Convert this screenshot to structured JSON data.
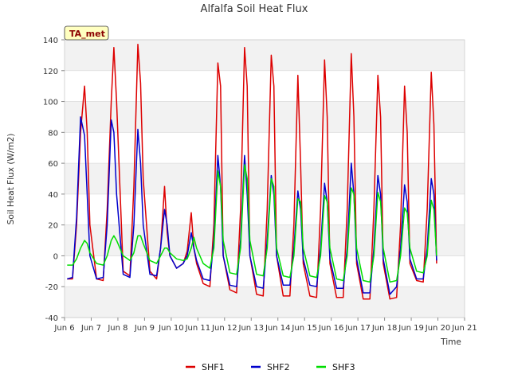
{
  "chart_data": {
    "type": "line",
    "title": "Alfalfa Soil Heat Flux",
    "xlabel": "Time",
    "ylabel": "Soil Heat Flux (W/m2)",
    "badge": "TA_met",
    "xlim": [
      6,
      21
    ],
    "ylim": [
      -40,
      140
    ],
    "x_ticks": [
      6,
      7,
      8,
      9,
      10,
      11,
      12,
      13,
      14,
      15,
      16,
      17,
      18,
      19,
      20,
      21
    ],
    "x_tick_labels": [
      "Jun 6",
      "Jun 7",
      "Jun 8",
      "Jun 9",
      "Jun 10",
      "Jun 11",
      "Jun 12",
      "Jun 13",
      "Jun 14",
      "Jun 15",
      "Jun 16",
      "Jun 17",
      "Jun 18",
      "Jun 19",
      "Jun 20",
      "Jun 21"
    ],
    "y_ticks": [
      -40,
      -20,
      0,
      20,
      40,
      60,
      80,
      100,
      120,
      140
    ],
    "grid": true,
    "legend_position": "bottom-center",
    "x": [
      6.1,
      6.3,
      6.45,
      6.6,
      6.75,
      6.85,
      6.95,
      7.2,
      7.45,
      7.6,
      7.75,
      7.85,
      7.95,
      8.2,
      8.45,
      8.6,
      8.75,
      8.85,
      8.95,
      9.2,
      9.45,
      9.6,
      9.75,
      9.85,
      9.95,
      10.2,
      10.45,
      10.6,
      10.75,
      10.85,
      10.95,
      11.2,
      11.45,
      11.6,
      11.75,
      11.85,
      11.95,
      12.2,
      12.45,
      12.6,
      12.75,
      12.85,
      12.95,
      13.2,
      13.45,
      13.6,
      13.75,
      13.85,
      13.95,
      14.2,
      14.45,
      14.6,
      14.75,
      14.85,
      14.95,
      15.2,
      15.45,
      15.6,
      15.75,
      15.85,
      15.95,
      16.2,
      16.45,
      16.6,
      16.75,
      16.85,
      16.95,
      17.2,
      17.45,
      17.6,
      17.75,
      17.85,
      17.95,
      18.2,
      18.45,
      18.6,
      18.75,
      18.85,
      18.95,
      19.2,
      19.45,
      19.6,
      19.75,
      19.85,
      19.95
    ],
    "series": [
      {
        "name": "SHF1",
        "color": "#dd0000",
        "values": [
          -15,
          -15,
          20,
          80,
          110,
          80,
          20,
          -15,
          -16,
          30,
          100,
          135,
          100,
          -10,
          -13,
          45,
          137,
          112,
          50,
          -10,
          -15,
          5,
          45,
          15,
          0,
          -8,
          -5,
          3,
          28,
          5,
          -5,
          -18,
          -20,
          20,
          125,
          110,
          0,
          -22,
          -24,
          30,
          135,
          110,
          0,
          -25,
          -26,
          30,
          130,
          110,
          0,
          -26,
          -26,
          20,
          117,
          60,
          -5,
          -26,
          -27,
          30,
          127,
          90,
          -5,
          -27,
          -27,
          30,
          131,
          90,
          -5,
          -28,
          -28,
          30,
          117,
          90,
          -5,
          -28,
          -27,
          20,
          110,
          80,
          -5,
          -16,
          -17,
          30,
          119,
          85,
          -5
        ]
      },
      {
        "name": "SHF2",
        "color": "#0000cc",
        "values": [
          -15,
          -14,
          25,
          90,
          78,
          40,
          0,
          -15,
          -14,
          20,
          88,
          80,
          40,
          -12,
          -14,
          20,
          82,
          60,
          20,
          -12,
          -13,
          5,
          30,
          20,
          0,
          -8,
          -5,
          0,
          15,
          5,
          -3,
          -15,
          -16,
          10,
          65,
          45,
          0,
          -19,
          -20,
          10,
          65,
          40,
          0,
          -20,
          -21,
          10,
          52,
          40,
          0,
          -19,
          -19,
          5,
          42,
          30,
          -2,
          -19,
          -20,
          5,
          47,
          35,
          -2,
          -21,
          -21,
          5,
          60,
          40,
          -2,
          -24,
          -24,
          5,
          52,
          40,
          -2,
          -25,
          -20,
          5,
          46,
          35,
          -2,
          -15,
          -15,
          5,
          50,
          40,
          -3
        ]
      },
      {
        "name": "SHF3",
        "color": "#00dd00",
        "values": [
          -6,
          -6,
          -2,
          5,
          10,
          8,
          2,
          -5,
          -6,
          0,
          10,
          13,
          10,
          0,
          -3,
          2,
          13,
          13,
          8,
          -3,
          -5,
          0,
          5,
          5,
          2,
          -2,
          -3,
          -2,
          5,
          12,
          5,
          -5,
          -8,
          5,
          55,
          45,
          10,
          -11,
          -12,
          5,
          59,
          50,
          10,
          -12,
          -13,
          5,
          50,
          45,
          5,
          -13,
          -14,
          0,
          37,
          35,
          5,
          -13,
          -14,
          0,
          39,
          35,
          5,
          -15,
          -16,
          0,
          44,
          40,
          5,
          -16,
          -17,
          0,
          41,
          35,
          5,
          -17,
          -16,
          0,
          31,
          28,
          5,
          -10,
          -11,
          0,
          36,
          30,
          0
        ]
      }
    ]
  }
}
